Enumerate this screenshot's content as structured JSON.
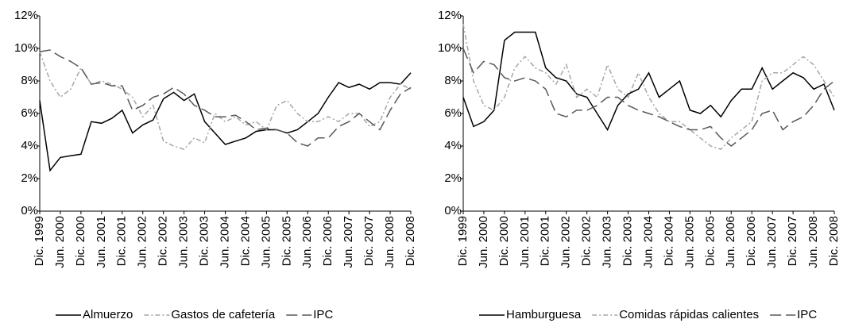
{
  "chart_data": [
    {
      "type": "line",
      "categories": [
        "Dic. 1999",
        null,
        "Jun. 2000",
        null,
        "Dic. 2000",
        null,
        "Jun. 2001",
        null,
        "Dic. 2001",
        null,
        "Jun. 2002",
        null,
        "Dic. 2002",
        null,
        "Jun. 2003",
        null,
        "Dic. 2003",
        null,
        "Jun. 2004",
        null,
        "Dic. 2004",
        null,
        "Jun. 2005",
        null,
        "Dic. 2005",
        null,
        "Jun. 2006",
        null,
        "Dic. 2006",
        null,
        "Jun. 2007",
        null,
        "Dic. 2007",
        null,
        "Jun. 2008",
        null,
        "Dic. 2008"
      ],
      "series": [
        {
          "name": "Almuerzo",
          "color": "#000000",
          "dash": "solid",
          "values": [
            6.8,
            2.5,
            3.3,
            3.4,
            3.5,
            5.5,
            5.4,
            5.7,
            6.2,
            4.8,
            5.3,
            5.6,
            6.9,
            7.3,
            6.8,
            7.2,
            5.5,
            4.8,
            4.1,
            4.3,
            4.5,
            4.9,
            5.0,
            5.0,
            4.8,
            5.0,
            5.5,
            6.0,
            7.0,
            7.9,
            7.6,
            7.8,
            7.5,
            7.9,
            7.9,
            7.8,
            8.5
          ]
        },
        {
          "name": "Gastos de cafetería",
          "color": "#a6a6a6",
          "dash": "dashdot",
          "values": [
            9.8,
            8.0,
            7.0,
            7.5,
            8.8,
            7.8,
            8.0,
            7.8,
            7.5,
            7.0,
            5.8,
            6.5,
            4.3,
            4.0,
            3.8,
            4.5,
            4.2,
            6.0,
            5.5,
            5.8,
            5.3,
            5.5,
            5.0,
            6.5,
            6.8,
            6.0,
            5.5,
            5.5,
            5.8,
            5.5,
            6.0,
            6.0,
            5.2,
            5.5,
            7.0,
            7.8,
            7.5
          ]
        },
        {
          "name": "IPC",
          "color": "#595959",
          "dash": "dashed",
          "values": [
            9.8,
            9.9,
            9.5,
            9.2,
            8.8,
            7.8,
            7.9,
            7.7,
            7.7,
            6.2,
            6.5,
            7.0,
            7.2,
            7.6,
            7.2,
            6.5,
            6.2,
            5.8,
            5.8,
            5.9,
            5.5,
            5.0,
            5.1,
            5.0,
            4.8,
            4.2,
            4.0,
            4.5,
            4.5,
            5.2,
            5.5,
            6.0,
            5.5,
            5.0,
            6.2,
            7.2,
            7.6
          ]
        }
      ],
      "ylim": [
        0,
        12
      ],
      "yticks": [
        {
          "value": 0,
          "label": "0%"
        },
        {
          "value": 2,
          "label": "2%"
        },
        {
          "value": 4,
          "label": "4%"
        },
        {
          "value": 6,
          "label": "6%"
        },
        {
          "value": 8,
          "label": "8%"
        },
        {
          "value": 10,
          "label": "10%"
        },
        {
          "value": 12,
          "label": "12%"
        }
      ],
      "legend": "bottom"
    },
    {
      "type": "line",
      "categories": [
        "Dic. 1999",
        null,
        "Jun. 2000",
        null,
        "Dic. 2000",
        null,
        "Jun. 2001",
        null,
        "Dic. 2001",
        null,
        "Jun. 2002",
        null,
        "Dic. 2002",
        null,
        "Jun. 2003",
        null,
        "Dic. 2003",
        null,
        "Jun. 2004",
        null,
        "Dic. 2004",
        null,
        "Jun. 2005",
        null,
        "Dic. 2005",
        null,
        "Jun. 2006",
        null,
        "Dic. 2006",
        null,
        "Jun. 2007",
        null,
        "Dic. 2007",
        null,
        "Jun. 2008",
        null,
        "Dic. 2008"
      ],
      "series": [
        {
          "name": "Hamburguesa",
          "color": "#000000",
          "dash": "solid",
          "values": [
            7.0,
            5.2,
            5.5,
            6.2,
            10.5,
            11.0,
            11.0,
            11.0,
            8.8,
            8.2,
            8.0,
            7.2,
            7.0,
            6.0,
            5.0,
            6.5,
            7.2,
            7.5,
            8.5,
            7.0,
            7.5,
            8.0,
            6.2,
            6.0,
            6.5,
            5.8,
            6.8,
            7.5,
            7.5,
            8.8,
            7.5,
            8.0,
            8.5,
            8.2,
            7.5,
            7.8,
            6.2
          ]
        },
        {
          "name": "Comidas rápidas calientes",
          "color": "#a6a6a6",
          "dash": "dashdot",
          "values": [
            11.5,
            8.0,
            6.5,
            6.2,
            7.0,
            8.8,
            9.5,
            8.8,
            8.5,
            7.8,
            9.0,
            7.0,
            7.5,
            7.0,
            9.0,
            7.5,
            7.0,
            8.5,
            7.0,
            6.0,
            5.5,
            5.5,
            5.0,
            4.5,
            4.0,
            3.8,
            4.5,
            5.0,
            5.5,
            8.0,
            8.5,
            8.5,
            9.0,
            9.5,
            9.0,
            8.0,
            7.0
          ]
        },
        {
          "name": "IPC",
          "color": "#595959",
          "dash": "dashed",
          "values": [
            10.0,
            8.5,
            9.2,
            9.0,
            8.2,
            8.0,
            8.2,
            8.0,
            7.5,
            6.0,
            5.8,
            6.2,
            6.2,
            6.5,
            7.0,
            7.0,
            6.5,
            6.2,
            6.0,
            5.8,
            5.5,
            5.2,
            5.0,
            5.0,
            5.2,
            4.5,
            4.0,
            4.5,
            5.0,
            6.0,
            6.2,
            5.0,
            5.5,
            5.8,
            6.5,
            7.5,
            8.0
          ]
        }
      ],
      "ylim": [
        0,
        12
      ],
      "yticks": [
        {
          "value": 0,
          "label": "0%"
        },
        {
          "value": 2,
          "label": "2%"
        },
        {
          "value": 4,
          "label": "4%"
        },
        {
          "value": 6,
          "label": "6%"
        },
        {
          "value": 8,
          "label": "8%"
        },
        {
          "value": 10,
          "label": "10%"
        },
        {
          "value": 12,
          "label": "12%"
        }
      ],
      "legend": "bottom"
    }
  ]
}
